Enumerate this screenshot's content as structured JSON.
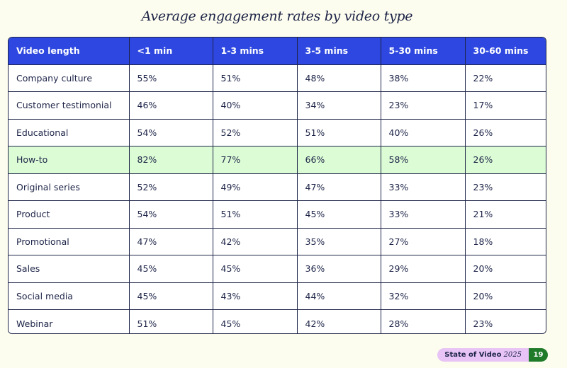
{
  "title": "Average engagement rates by video type",
  "table": {
    "headers": [
      "Video length",
      "<1 min",
      "1-3 mins",
      "3-5 mins",
      "5-30 mins",
      "30-60 mins"
    ],
    "rows": [
      [
        "Company culture",
        "55%",
        "51%",
        "48%",
        "38%",
        "22%"
      ],
      [
        "Customer testimonial",
        "46%",
        "40%",
        "34%",
        "23%",
        "17%"
      ],
      [
        "Educational",
        "54%",
        "52%",
        "51%",
        "40%",
        "26%"
      ],
      [
        "How-to",
        "82%",
        "77%",
        "66%",
        "58%",
        "26%"
      ],
      [
        "Original series",
        "52%",
        "49%",
        "47%",
        "33%",
        "23%"
      ],
      [
        "Product",
        "54%",
        "51%",
        "45%",
        "33%",
        "21%"
      ],
      [
        "Promotional",
        "47%",
        "42%",
        "35%",
        "27%",
        "18%"
      ],
      [
        "Sales",
        "45%",
        "45%",
        "36%",
        "29%",
        "20%"
      ],
      [
        "Social media",
        "45%",
        "43%",
        "44%",
        "32%",
        "20%"
      ],
      [
        "Webinar",
        "51%",
        "45%",
        "42%",
        "28%",
        "23%"
      ]
    ],
    "highlighted_row": "How-to"
  },
  "footer": {
    "report_label": "State of Video",
    "year": "2025",
    "page_number": "19"
  },
  "colors": {
    "background": "#fdfdef",
    "header_bg": "#2d47e0",
    "highlight_bg": "#dcfcd6",
    "text": "#1e2548",
    "pill_bg": "#e7c4f5",
    "page_badge_bg": "#1f7a2a"
  }
}
